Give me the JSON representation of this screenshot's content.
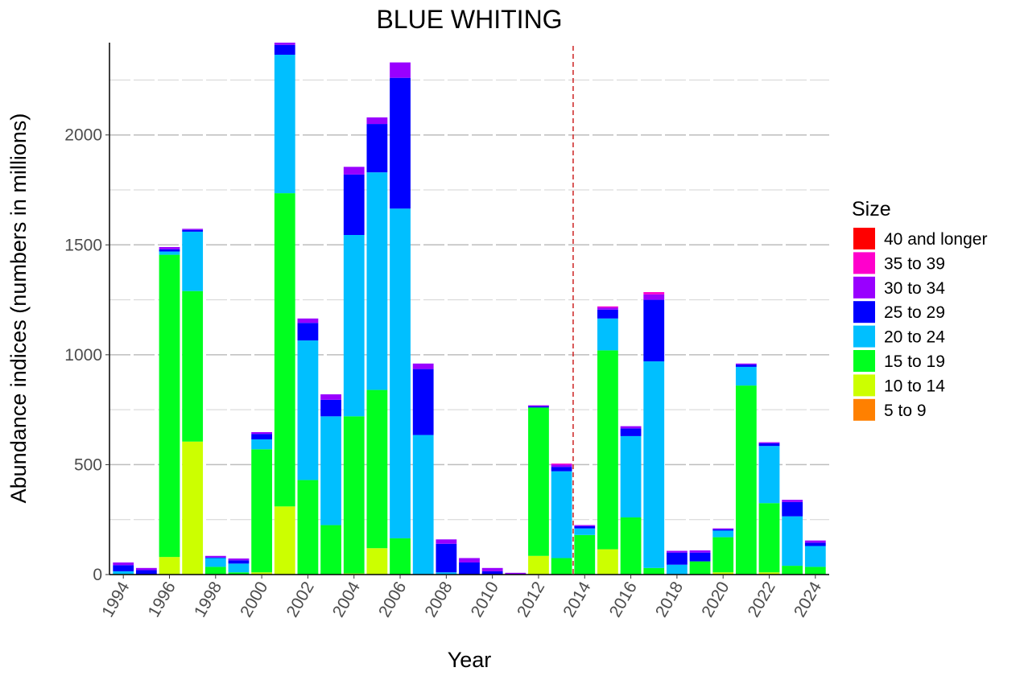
{
  "chart_data": {
    "type": "bar",
    "stacked": true,
    "title": "BLUE WHITING",
    "xlabel": "Year",
    "ylabel": "Abundance indices (numbers in millions)",
    "ylim": [
      0,
      2420
    ],
    "yticks": [
      0,
      500,
      1000,
      1500,
      2000
    ],
    "xticks": [
      1994,
      1996,
      1998,
      2000,
      2002,
      2004,
      2006,
      2008,
      2010,
      2012,
      2014,
      2016,
      2018,
      2020,
      2022,
      2024
    ],
    "grid": true,
    "legend": {
      "title": "Size",
      "placement": "right"
    },
    "reference_line": {
      "x": 2013.5,
      "style": "dashed",
      "color": "#CC2222"
    },
    "categories": [
      1994,
      1995,
      1996,
      1997,
      1998,
      1999,
      2000,
      2001,
      2002,
      2003,
      2004,
      2005,
      2006,
      2007,
      2008,
      2009,
      2010,
      2011,
      2012,
      2013,
      2014,
      2015,
      2016,
      2017,
      2018,
      2019,
      2020,
      2021,
      2022,
      2023,
      2024
    ],
    "series": [
      {
        "name": "5 to 9",
        "color": "#FF8000",
        "values": [
          0,
          0,
          0,
          0,
          0,
          0,
          0,
          0,
          0,
          0,
          0,
          0,
          0,
          0,
          0,
          0,
          0,
          0,
          0,
          0,
          0,
          0,
          0,
          0,
          0,
          0,
          0,
          0,
          0,
          0,
          0
        ]
      },
      {
        "name": "10 to 14",
        "color": "#CCFF00",
        "values": [
          0,
          0,
          80,
          605,
          0,
          0,
          10,
          310,
          0,
          0,
          5,
          120,
          0,
          0,
          0,
          0,
          0,
          0,
          85,
          0,
          0,
          115,
          0,
          0,
          0,
          0,
          10,
          0,
          10,
          0,
          0
        ]
      },
      {
        "name": "15 to 19",
        "color": "#00FF1F",
        "values": [
          3,
          0,
          1375,
          685,
          35,
          10,
          560,
          1425,
          430,
          225,
          715,
          720,
          165,
          0,
          0,
          0,
          0,
          0,
          675,
          75,
          180,
          905,
          260,
          30,
          0,
          60,
          160,
          860,
          315,
          40,
          35
        ]
      },
      {
        "name": "20 to 24",
        "color": "#00BFFF",
        "values": [
          12,
          0,
          15,
          270,
          40,
          40,
          45,
          630,
          635,
          495,
          825,
          990,
          1500,
          635,
          10,
          0,
          0,
          0,
          0,
          395,
          30,
          145,
          370,
          940,
          45,
          0,
          30,
          85,
          260,
          225,
          95
        ]
      },
      {
        "name": "25 to 29",
        "color": "#0000FF",
        "values": [
          28,
          20,
          10,
          8,
          3,
          15,
          25,
          45,
          80,
          75,
          275,
          220,
          595,
          300,
          130,
          55,
          15,
          0,
          5,
          20,
          10,
          40,
          35,
          280,
          55,
          40,
          5,
          10,
          12,
          65,
          15
        ]
      },
      {
        "name": "30 to 34",
        "color": "#9900FF",
        "values": [
          12,
          10,
          10,
          5,
          7,
          8,
          8,
          10,
          20,
          25,
          35,
          30,
          70,
          25,
          20,
          20,
          15,
          8,
          5,
          10,
          5,
          10,
          10,
          25,
          8,
          10,
          5,
          5,
          5,
          10,
          10
        ]
      },
      {
        "name": "35 to 39",
        "color": "#FF00CC",
        "values": [
          0,
          0,
          0,
          0,
          0,
          0,
          0,
          0,
          0,
          0,
          0,
          0,
          0,
          0,
          0,
          0,
          0,
          0,
          0,
          5,
          0,
          5,
          0,
          10,
          0,
          0,
          0,
          0,
          0,
          0,
          0
        ]
      },
      {
        "name": "40 and longer",
        "color": "#FF0000",
        "values": [
          0,
          0,
          0,
          0,
          0,
          0,
          0,
          0,
          0,
          0,
          0,
          0,
          0,
          0,
          0,
          0,
          0,
          0,
          0,
          0,
          0,
          0,
          0,
          0,
          0,
          0,
          0,
          0,
          0,
          0,
          0
        ]
      }
    ]
  }
}
